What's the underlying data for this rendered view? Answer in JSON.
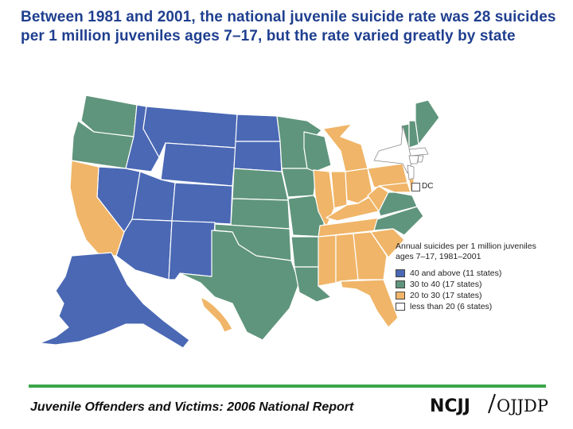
{
  "title": "Between 1981 and 2001, the national juvenile suicide rate was 28 suicides per 1 million juveniles ages 7–17, but the rate varied greatly by state",
  "map": {
    "dc_label": "DC",
    "legend": {
      "title": "Annual suicides per 1 million juveniles ages 7–17, 1981–2001",
      "items": [
        {
          "label": "40 and above (11 states)",
          "color": "#4a68b4"
        },
        {
          "label": "30 to 40 (17 states)",
          "color": "#5f957c"
        },
        {
          "label": "20 to 30 (17 states)",
          "color": "#f0b568"
        },
        {
          "label": "less than 20 (6 states)",
          "color": "#ffffff"
        }
      ]
    }
  },
  "footer": {
    "report": "Juvenile Offenders and Victims: 2006 National Report",
    "logo_left": "NCJJ",
    "logo_right": "OJJDP"
  }
}
